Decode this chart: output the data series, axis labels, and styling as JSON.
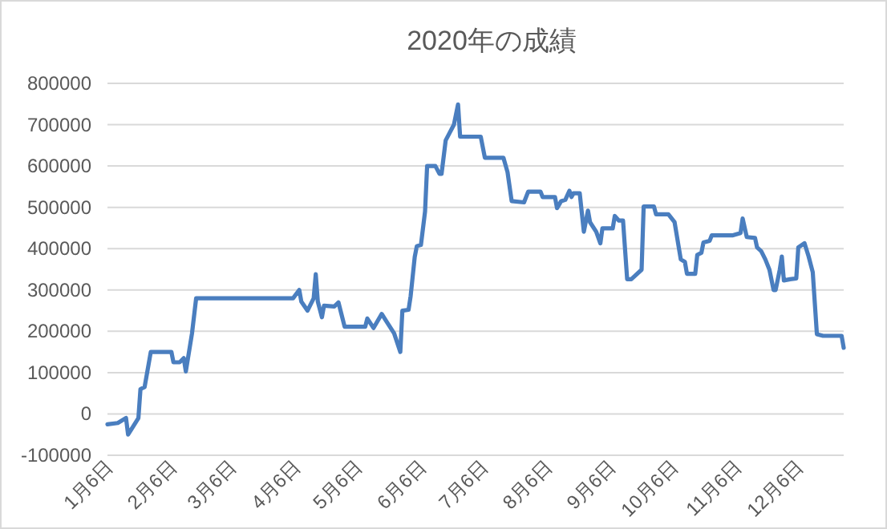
{
  "chart_data": {
    "type": "line",
    "title": "2020年の成績",
    "x": [
      "2020-01-06",
      "2020-01-11",
      "2020-01-15",
      "2020-01-16",
      "2020-01-21",
      "2020-01-22",
      "2020-01-24",
      "2020-01-27",
      "2020-02-06",
      "2020-02-07",
      "2020-02-10",
      "2020-02-12",
      "2020-02-13",
      "2020-02-16",
      "2020-02-18",
      "2020-04-05",
      "2020-04-08",
      "2020-04-09",
      "2020-04-12",
      "2020-04-15",
      "2020-04-16",
      "2020-04-17",
      "2020-04-19",
      "2020-04-20",
      "2020-04-25",
      "2020-04-27",
      "2020-04-30",
      "2020-05-10",
      "2020-05-11",
      "2020-05-14",
      "2020-05-18",
      "2020-05-20",
      "2020-05-24",
      "2020-05-27",
      "2020-05-28",
      "2020-05-31",
      "2020-06-01",
      "2020-06-03",
      "2020-06-04",
      "2020-06-06",
      "2020-06-08",
      "2020-06-09",
      "2020-06-13",
      "2020-06-15",
      "2020-06-16",
      "2020-06-18",
      "2020-06-22",
      "2020-06-24",
      "2020-06-25",
      "2020-07-05",
      "2020-07-07",
      "2020-07-16",
      "2020-07-18",
      "2020-07-20",
      "2020-07-26",
      "2020-07-28",
      "2020-08-03",
      "2020-08-04",
      "2020-08-10",
      "2020-08-11",
      "2020-08-13",
      "2020-08-15",
      "2020-08-17",
      "2020-08-18",
      "2020-08-19",
      "2020-08-22",
      "2020-08-24",
      "2020-08-26",
      "2020-08-27",
      "2020-08-30",
      "2020-09-01",
      "2020-09-02",
      "2020-09-07",
      "2020-09-08",
      "2020-09-10",
      "2020-09-12",
      "2020-09-14",
      "2020-09-16",
      "2020-09-21",
      "2020-09-22",
      "2020-09-27",
      "2020-09-28",
      "2020-10-04",
      "2020-10-07",
      "2020-10-10",
      "2020-10-12",
      "2020-10-13",
      "2020-10-17",
      "2020-10-18",
      "2020-10-20",
      "2020-10-21",
      "2020-10-24",
      "2020-10-25",
      "2020-11-04",
      "2020-11-08",
      "2020-11-09",
      "2020-11-11",
      "2020-11-15",
      "2020-11-16",
      "2020-11-18",
      "2020-11-20",
      "2020-11-22",
      "2020-11-24",
      "2020-11-25",
      "2020-11-27",
      "2020-11-28",
      "2020-11-29",
      "2020-12-02",
      "2020-12-05",
      "2020-12-06",
      "2020-12-09",
      "2020-12-11",
      "2020-12-13",
      "2020-12-15",
      "2020-12-18",
      "2020-12-27",
      "2020-12-28"
    ],
    "series": [
      {
        "color": "#4a7ebf",
        "values": [
          -25000,
          -22000,
          -10000,
          -50000,
          -10000,
          60000,
          65000,
          150000,
          150000,
          125000,
          125000,
          135000,
          103000,
          195000,
          280000,
          280000,
          300000,
          272000,
          250000,
          280000,
          338000,
          272000,
          234000,
          262000,
          260000,
          270000,
          211000,
          211000,
          231000,
          208000,
          242000,
          226000,
          195000,
          150000,
          250000,
          252000,
          285000,
          380000,
          406000,
          409000,
          490000,
          600000,
          600000,
          581000,
          581000,
          662000,
          700000,
          749000,
          671000,
          671000,
          620000,
          620000,
          585000,
          515000,
          512000,
          538000,
          538000,
          525000,
          525000,
          498000,
          515000,
          518000,
          540000,
          525000,
          534000,
          534000,
          441000,
          492000,
          464000,
          441000,
          413000,
          449000,
          449000,
          479000,
          468000,
          468000,
          326000,
          326000,
          349000,
          502000,
          502000,
          483000,
          483000,
          464000,
          374000,
          368000,
          339000,
          339000,
          385000,
          390000,
          415000,
          419000,
          432000,
          432000,
          438000,
          473000,
          428000,
          426000,
          403000,
          394000,
          374000,
          349000,
          300000,
          300000,
          349000,
          381000,
          323000,
          326000,
          328000,
          403000,
          413000,
          381000,
          343000,
          193000,
          189000,
          189000,
          160000
        ]
      }
    ],
    "xlim": [
      "2020-01-06",
      "2020-12-28"
    ],
    "xticks": [
      {
        "value": "2020-01-06",
        "label": "1月6日"
      },
      {
        "value": "2020-02-06",
        "label": "2月6日"
      },
      {
        "value": "2020-03-06",
        "label": "3月6日"
      },
      {
        "value": "2020-04-06",
        "label": "4月6日"
      },
      {
        "value": "2020-05-06",
        "label": "5月6日"
      },
      {
        "value": "2020-06-06",
        "label": "6月6日"
      },
      {
        "value": "2020-07-06",
        "label": "7月6日"
      },
      {
        "value": "2020-08-06",
        "label": "8月6日"
      },
      {
        "value": "2020-09-06",
        "label": "9月6日"
      },
      {
        "value": "2020-10-06",
        "label": "10月6日"
      },
      {
        "value": "2020-11-06",
        "label": "11月6日"
      },
      {
        "value": "2020-12-06",
        "label": "12月6日"
      }
    ],
    "ylim": [
      -100000,
      800000
    ],
    "yticks": [
      -100000,
      0,
      100000,
      200000,
      300000,
      400000,
      500000,
      600000,
      700000,
      800000
    ],
    "grid": "y",
    "marker": "none",
    "line_style": "solid"
  }
}
